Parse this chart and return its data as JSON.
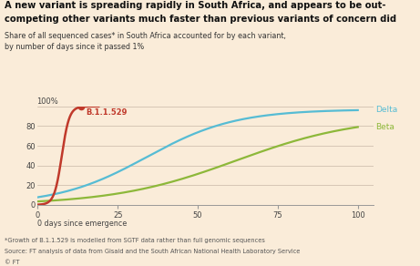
{
  "title_line1": "A new variant is spreading rapidly in South Africa, and appears to be out-",
  "title_line2": "competing other variants much faster than previous variants of concern did",
  "subtitle_line1": "Share of all sequenced cases* in South Africa accounted for by each variant,",
  "subtitle_line2": "by number of days since it passed 1%",
  "x_ticks": [
    0,
    25,
    50,
    75,
    100
  ],
  "y_ticks": [
    0,
    20,
    40,
    60,
    80,
    100
  ],
  "xlim": [
    0,
    105
  ],
  "ylim": [
    0,
    100
  ],
  "footnote1": "*Growth of B.1.1.529 is modelled from SGTF data rather than full genomic sequences",
  "footnote2": "Source: FT analysis of data from Gisaid and the South African National Health Laboratory Service",
  "footnote3": "© FT",
  "background_color": "#faecd9",
  "delta_color": "#56bcd4",
  "beta_color": "#8db83a",
  "omicron_color": "#c0392b",
  "delta_label": "Delta",
  "beta_label": "Beta",
  "omicron_label": "B.1.1.529",
  "omicron_dot_x": 13.5,
  "delta_k": 0.072,
  "delta_x0": 34,
  "delta_L": 97,
  "beta_k": 0.052,
  "beta_x0": 62,
  "beta_L": 90,
  "omicron_k": 0.85,
  "omicron_x0": 7.5,
  "omicron_L": 100,
  "omicron_xmax": 19
}
